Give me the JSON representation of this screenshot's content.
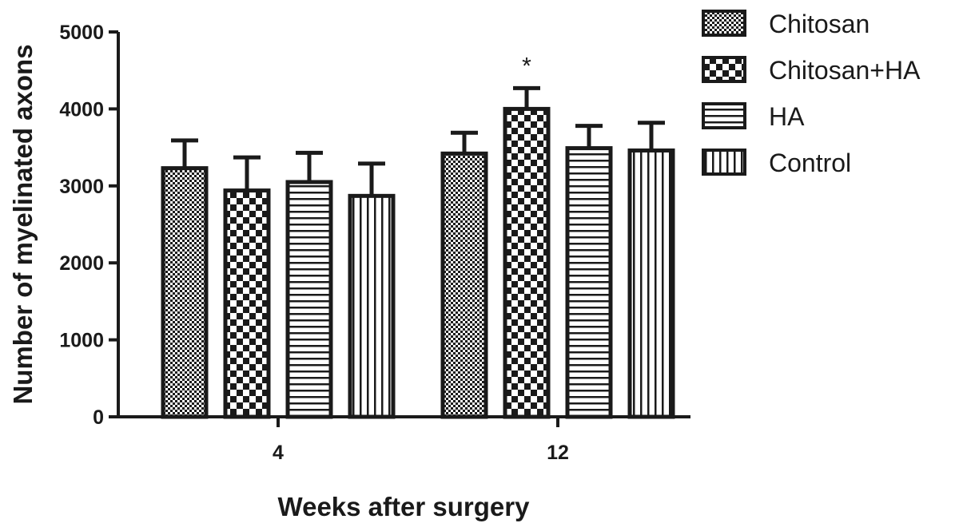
{
  "chart_data": {
    "type": "bar",
    "title": "",
    "xlabel": "Weeks after surgery",
    "ylabel": "Number of myelinated axons",
    "categories": [
      "4",
      "12"
    ],
    "ylim": [
      0,
      5000
    ],
    "yticks": [
      "0",
      "1000",
      "2000",
      "3000",
      "4000",
      "5000"
    ],
    "grid": false,
    "legend_position": "top-right",
    "series": [
      {
        "name": "Chitosan",
        "pattern": "fine-checker",
        "values": [
          3230,
          3420
        ],
        "errors": [
          360,
          270
        ]
      },
      {
        "name": "Chitosan+HA",
        "pattern": "coarse-checker",
        "values": [
          2940,
          4000
        ],
        "errors": [
          430,
          270
        ]
      },
      {
        "name": "HA",
        "pattern": "horizontal-stripes",
        "values": [
          3050,
          3490
        ],
        "errors": [
          380,
          290
        ]
      },
      {
        "name": "Control",
        "pattern": "vertical-stripes",
        "values": [
          2870,
          3460
        ],
        "errors": [
          420,
          360
        ]
      }
    ],
    "annotations": [
      {
        "text": "*",
        "category": "12",
        "series": "Chitosan+HA"
      }
    ],
    "colors": {
      "ink": "#1a1a1a",
      "background": "#ffffff"
    }
  }
}
